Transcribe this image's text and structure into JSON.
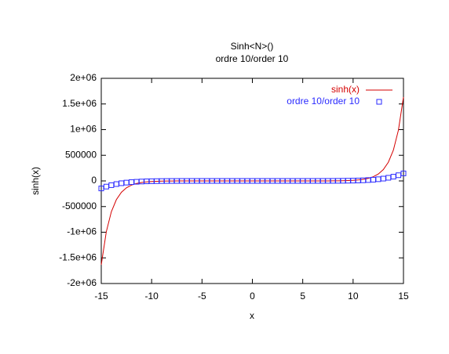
{
  "chart_data": {
    "type": "line",
    "title": "Sinh<N>()",
    "subtitle": "ordre 10/order 10",
    "x_label": "x",
    "y_label": "sinh(x)",
    "x": [
      -15,
      -14.5,
      -14,
      -13.5,
      -13,
      -12.5,
      -12,
      -11.5,
      -11,
      -10.5,
      -10,
      -9.5,
      -9,
      -8.5,
      -8,
      -7.5,
      -7,
      -6.5,
      -6,
      -5.5,
      -5,
      -4.5,
      -4,
      -3.5,
      -3,
      -2.5,
      -2,
      -1.5,
      -1,
      -0.5,
      0,
      0.5,
      1,
      1.5,
      2,
      2.5,
      3,
      3.5,
      4,
      4.5,
      5,
      5.5,
      6,
      6.5,
      7,
      7.5,
      8,
      8.5,
      9,
      9.5,
      10,
      10.5,
      11,
      11.5,
      12,
      12.5,
      13,
      13.5,
      14,
      14.5,
      15
    ],
    "series": [
      {
        "name": "sinh(x)",
        "color": "#d40000",
        "style": "line",
        "values": [
          -1634508.7,
          -991380.3,
          -601302.1,
          -364708.2,
          -221206.7,
          -134168.4,
          -81377.4,
          -49358.0,
          -29937.1,
          -18157.8,
          -11013.2,
          -6679.9,
          -4051.5,
          -2457.4,
          -1490.5,
          -904.0,
          -548.3,
          -332.6,
          -201.7,
          -122.3,
          -74.2,
          -45.0,
          -27.3,
          -16.5,
          -10.0,
          -6.05,
          -3.63,
          -2.13,
          -1.18,
          -0.52,
          0,
          0.52,
          1.18,
          2.13,
          3.63,
          6.05,
          10.0,
          16.5,
          27.3,
          45.0,
          74.2,
          122.3,
          201.7,
          332.6,
          548.3,
          904.0,
          1490.5,
          2457.4,
          4051.5,
          6679.9,
          11013.2,
          18157.8,
          29937.1,
          49358.0,
          81377.4,
          134168.4,
          221206.7,
          364708.2,
          601302.1,
          991380.3,
          1634508.7
        ]
      },
      {
        "name": "ordre 10/order 10",
        "color": "#2a2aff",
        "style": "points",
        "values": [
          -146748.0,
          -110684.6,
          -82805.1,
          -61417.8,
          -45146.5,
          -32874.2,
          -23702.1,
          -16913.3,
          -11939.3,
          -8333.9,
          -5749.9,
          -3919.6,
          -2639.2,
          -1754.9,
          -1152.4,
          -747.3,
          -478.8,
          -303.3,
          -190.1,
          -118.3,
          -72.8,
          -44.4,
          -27.2,
          -16.5,
          -10.0,
          -6.05,
          -3.63,
          -2.13,
          -1.18,
          -0.52,
          0,
          0.52,
          1.18,
          2.13,
          3.63,
          6.05,
          10.0,
          16.5,
          27.2,
          44.4,
          72.8,
          118.3,
          190.1,
          303.3,
          478.8,
          747.3,
          1152.4,
          1754.9,
          2639.2,
          3919.6,
          5749.9,
          8333.9,
          11939.3,
          16913.3,
          23702.1,
          32874.2,
          45146.5,
          61417.8,
          82805.1,
          110684.6,
          146748.0
        ]
      }
    ],
    "xlim": [
      -15,
      15
    ],
    "xticks": [
      -15,
      -10,
      -5,
      0,
      5,
      10,
      15
    ],
    "ylim": [
      -2000000,
      2000000
    ],
    "yticks": [
      {
        "value": -2000000,
        "label": "-2e+06"
      },
      {
        "value": -1500000,
        "label": "-1.5e+06"
      },
      {
        "value": -1000000,
        "label": "-1e+06"
      },
      -500000,
      0,
      500000,
      {
        "value": 1000000,
        "label": "1e+06"
      },
      {
        "value": 1500000,
        "label": "1.5e+06"
      },
      {
        "value": 2000000,
        "label": "2e+06"
      }
    ],
    "grid": false,
    "legend": "top-right"
  }
}
